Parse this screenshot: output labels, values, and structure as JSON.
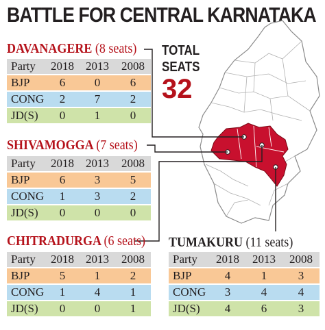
{
  "title": "BATTLE FOR CENTRAL KARNATAKA",
  "total_label_1": "TOTAL",
  "total_label_2": "SEATS",
  "total_seats": "32",
  "colors": {
    "accent": "#b5121b",
    "bjp": "#f9c896",
    "cong": "#b9dcf0",
    "jds": "#cfe3a9",
    "header": "#d9d9d9"
  },
  "chart_data": [
    {
      "type": "table",
      "title": "DAVANAGERE (8 seats)",
      "region": "DAVANAGERE",
      "seats": "(8 seats)",
      "header": [
        "Party",
        "2018",
        "2013",
        "2008"
      ],
      "rows": [
        [
          "BJP",
          "6",
          "0",
          "6"
        ],
        [
          "CONG",
          "2",
          "7",
          "2"
        ],
        [
          "JD(S)",
          "0",
          "1",
          "0"
        ]
      ]
    },
    {
      "type": "table",
      "title": "SHIVAMOGGA (7 seats)",
      "region": "SHIVAMOGGA",
      "seats": "(7 seats)",
      "header": [
        "Party",
        "2018",
        "2013",
        "2008"
      ],
      "rows": [
        [
          "BJP",
          "6",
          "3",
          "5"
        ],
        [
          "CONG",
          "1",
          "3",
          "2"
        ],
        [
          "JD(S)",
          "0",
          "0",
          "0"
        ]
      ]
    },
    {
      "type": "table",
      "title": "CHITRADURGA (6 seats)",
      "region": "CHITRADURGA",
      "seats": "(6 seats)",
      "header": [
        "Party",
        "2018",
        "2013",
        "2008"
      ],
      "rows": [
        [
          "BJP",
          "5",
          "1",
          "2"
        ],
        [
          "CONG",
          "1",
          "4",
          "1"
        ],
        [
          "JD(S)",
          "0",
          "0",
          "1"
        ]
      ]
    },
    {
      "type": "table",
      "title": "TUMAKURU (11 seats)",
      "region": "TUMAKURU",
      "seats": "(11 seats)",
      "header": [
        "Party",
        "2018",
        "2013",
        "2008"
      ],
      "rows": [
        [
          "BJP",
          "4",
          "1",
          "3"
        ],
        [
          "CONG",
          "3",
          "4",
          "4"
        ],
        [
          "JD(S)",
          "4",
          "6",
          "3"
        ]
      ]
    }
  ]
}
